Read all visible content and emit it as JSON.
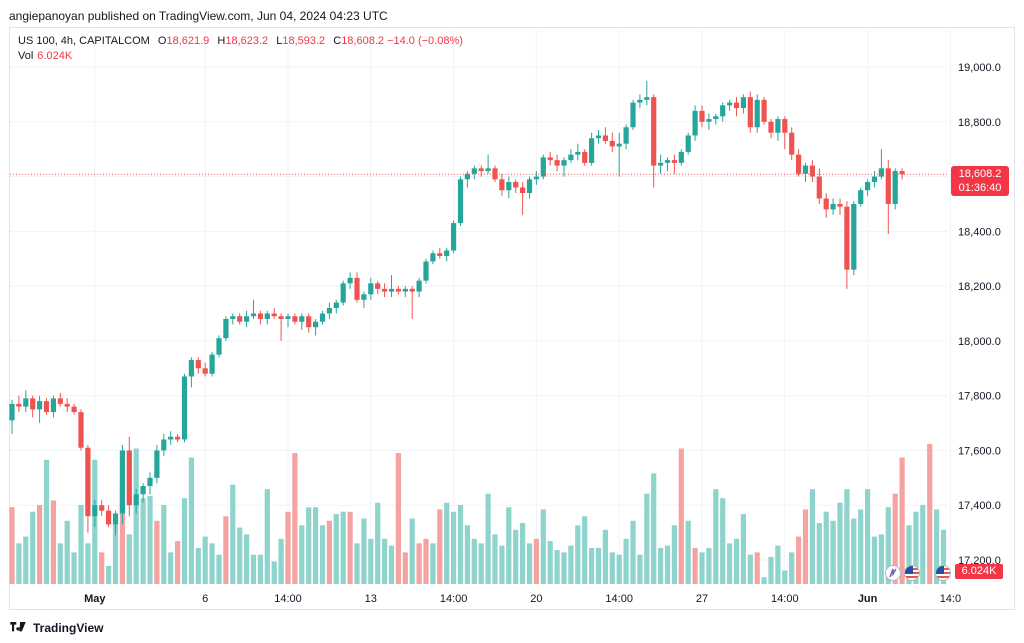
{
  "header": {
    "publisher": "angiepanoyan published on TradingView.com, Jun 04, 2024 04:23 UTC"
  },
  "legend": {
    "symbol": "US 100, 4h, CAPITALCOM",
    "o_label": "O",
    "o": "18,621.9",
    "h_label": "H",
    "h": "18,623.2",
    "l_label": "L",
    "l": "18,593.2",
    "c_label": "C",
    "c": "18,608.2",
    "change": "−14.0 (−0.08%)",
    "vol_label": "Vol",
    "vol_value": "6.024K"
  },
  "price_tag": {
    "price": "18,608.2",
    "countdown": "01:36:40"
  },
  "volume_tag": "6.024K",
  "footer": {
    "brand": "TradingView"
  },
  "colors": {
    "up": "#26a69a",
    "down": "#ef5350",
    "vol_up": "#8fd3cd",
    "vol_down": "#f5a3a1",
    "grid": "#f0f3fa"
  },
  "chart_data": {
    "type": "candlestick",
    "timeframe": "4h",
    "y_axis": {
      "ticks": [
        17200,
        17400,
        17600,
        17800,
        18000,
        18200,
        18400,
        18600,
        18800,
        19000
      ],
      "tick_labels": [
        "17,200.0",
        "17,400.0",
        "17,600.0",
        "17,800.0",
        "18,000.0",
        "18,200.0",
        "18,400.0",
        "18,600.0",
        "18,800.0",
        "19,000.0"
      ],
      "range": [
        17100,
        19150
      ]
    },
    "x_axis": {
      "tick_labels": [
        {
          "label": "May",
          "index": 12,
          "bold": true
        },
        {
          "label": "6",
          "index": 28
        },
        {
          "label": "14:00",
          "index": 40
        },
        {
          "label": "13",
          "index": 52
        },
        {
          "label": "14:00",
          "index": 64
        },
        {
          "label": "20",
          "index": 76
        },
        {
          "label": "14:00",
          "index": 88
        },
        {
          "label": "27",
          "index": 100
        },
        {
          "label": "14:00",
          "index": 112
        },
        {
          "label": "Jun",
          "index": 124,
          "bold": true
        },
        {
          "label": "14:0",
          "index": 136
        }
      ]
    },
    "last_price_line": 18608.2,
    "candles": [
      [
        17710,
        17785,
        17660,
        17770
      ],
      [
        17770,
        17800,
        17740,
        17760
      ],
      [
        17760,
        17820,
        17740,
        17790
      ],
      [
        17790,
        17800,
        17720,
        17750
      ],
      [
        17750,
        17800,
        17700,
        17780
      ],
      [
        17780,
        17790,
        17730,
        17740
      ],
      [
        17740,
        17800,
        17720,
        17790
      ],
      [
        17790,
        17810,
        17760,
        17770
      ],
      [
        17770,
        17790,
        17740,
        17760
      ],
      [
        17760,
        17770,
        17730,
        17740
      ],
      [
        17740,
        17750,
        17600,
        17610
      ],
      [
        17610,
        17620,
        17300,
        17360
      ],
      [
        17360,
        17420,
        17320,
        17400
      ],
      [
        17400,
        17420,
        17360,
        17380
      ],
      [
        17380,
        17400,
        17320,
        17330
      ],
      [
        17330,
        17380,
        17290,
        17370
      ],
      [
        17370,
        17620,
        17330,
        17600
      ],
      [
        17600,
        17650,
        17360,
        17400
      ],
      [
        17400,
        17460,
        17370,
        17440
      ],
      [
        17440,
        17480,
        17410,
        17470
      ],
      [
        17470,
        17520,
        17440,
        17500
      ],
      [
        17500,
        17620,
        17480,
        17600
      ],
      [
        17600,
        17660,
        17580,
        17640
      ],
      [
        17640,
        17670,
        17620,
        17650
      ],
      [
        17650,
        17660,
        17630,
        17640
      ],
      [
        17640,
        17880,
        17630,
        17870
      ],
      [
        17870,
        17940,
        17830,
        17930
      ],
      [
        17930,
        17940,
        17880,
        17900
      ],
      [
        17900,
        17920,
        17870,
        17880
      ],
      [
        17880,
        17960,
        17870,
        17950
      ],
      [
        17950,
        18020,
        17940,
        18010
      ],
      [
        18010,
        18090,
        18000,
        18080
      ],
      [
        18080,
        18100,
        18060,
        18090
      ],
      [
        18090,
        18100,
        18060,
        18070
      ],
      [
        18070,
        18110,
        18050,
        18090
      ],
      [
        18090,
        18150,
        18080,
        18100
      ],
      [
        18100,
        18110,
        18060,
        18080
      ],
      [
        18080,
        18110,
        18060,
        18100
      ],
      [
        18100,
        18120,
        18080,
        18090
      ],
      [
        18090,
        18100,
        18000,
        18080
      ],
      [
        18080,
        18100,
        18050,
        18090
      ],
      [
        18090,
        18100,
        18060,
        18070
      ],
      [
        18070,
        18100,
        18040,
        18090
      ],
      [
        18090,
        18100,
        18030,
        18050
      ],
      [
        18050,
        18080,
        18020,
        18070
      ],
      [
        18070,
        18110,
        18060,
        18100
      ],
      [
        18100,
        18140,
        18080,
        18120
      ],
      [
        18120,
        18150,
        18100,
        18140
      ],
      [
        18140,
        18220,
        18130,
        18210
      ],
      [
        18210,
        18250,
        18190,
        18230
      ],
      [
        18230,
        18250,
        18140,
        18150
      ],
      [
        18150,
        18180,
        18120,
        18170
      ],
      [
        18170,
        18230,
        18150,
        18210
      ],
      [
        18210,
        18220,
        18170,
        18190
      ],
      [
        18190,
        18210,
        18160,
        18180
      ],
      [
        18180,
        18240,
        18160,
        18190
      ],
      [
        18190,
        18200,
        18170,
        18180
      ],
      [
        18180,
        18200,
        18160,
        18190
      ],
      [
        18190,
        18200,
        18080,
        18180
      ],
      [
        18180,
        18230,
        18160,
        18220
      ],
      [
        18220,
        18300,
        18210,
        18290
      ],
      [
        18290,
        18330,
        18280,
        18320
      ],
      [
        18320,
        18340,
        18300,
        18310
      ],
      [
        18310,
        18340,
        18290,
        18330
      ],
      [
        18330,
        18440,
        18320,
        18430
      ],
      [
        18430,
        18600,
        18420,
        18590
      ],
      [
        18590,
        18620,
        18560,
        18610
      ],
      [
        18610,
        18640,
        18590,
        18630
      ],
      [
        18630,
        18640,
        18600,
        18620
      ],
      [
        18620,
        18680,
        18610,
        18630
      ],
      [
        18630,
        18640,
        18580,
        18590
      ],
      [
        18590,
        18610,
        18530,
        18550
      ],
      [
        18550,
        18600,
        18520,
        18580
      ],
      [
        18580,
        18590,
        18540,
        18560
      ],
      [
        18560,
        18580,
        18460,
        18540
      ],
      [
        18540,
        18600,
        18520,
        18590
      ],
      [
        18590,
        18620,
        18570,
        18600
      ],
      [
        18600,
        18680,
        18590,
        18670
      ],
      [
        18670,
        18690,
        18640,
        18660
      ],
      [
        18660,
        18680,
        18620,
        18640
      ],
      [
        18640,
        18670,
        18600,
        18660
      ],
      [
        18660,
        18700,
        18650,
        18680
      ],
      [
        18680,
        18720,
        18660,
        18690
      ],
      [
        18690,
        18700,
        18640,
        18650
      ],
      [
        18650,
        18760,
        18640,
        18740
      ],
      [
        18740,
        18770,
        18720,
        18750
      ],
      [
        18750,
        18780,
        18720,
        18730
      ],
      [
        18730,
        18760,
        18690,
        18710
      ],
      [
        18710,
        18760,
        18600,
        18720
      ],
      [
        18720,
        18790,
        18700,
        18780
      ],
      [
        18780,
        18880,
        18770,
        18870
      ],
      [
        18870,
        18900,
        18850,
        18880
      ],
      [
        18880,
        18950,
        18860,
        18890
      ],
      [
        18890,
        18900,
        18560,
        18640
      ],
      [
        18640,
        18680,
        18610,
        18650
      ],
      [
        18650,
        18670,
        18620,
        18660
      ],
      [
        18660,
        18680,
        18610,
        18650
      ],
      [
        18650,
        18700,
        18640,
        18690
      ],
      [
        18690,
        18760,
        18680,
        18750
      ],
      [
        18750,
        18860,
        18730,
        18840
      ],
      [
        18840,
        18860,
        18780,
        18800
      ],
      [
        18800,
        18830,
        18770,
        18810
      ],
      [
        18810,
        18830,
        18790,
        18820
      ],
      [
        18820,
        18870,
        18800,
        18860
      ],
      [
        18860,
        18880,
        18840,
        18870
      ],
      [
        18870,
        18890,
        18820,
        18850
      ],
      [
        18850,
        18900,
        18830,
        18890
      ],
      [
        18890,
        18910,
        18760,
        18780
      ],
      [
        18780,
        18900,
        18760,
        18880
      ],
      [
        18880,
        18890,
        18790,
        18800
      ],
      [
        18800,
        18810,
        18740,
        18760
      ],
      [
        18760,
        18820,
        18730,
        18810
      ],
      [
        18810,
        18820,
        18700,
        18760
      ],
      [
        18760,
        18780,
        18660,
        18680
      ],
      [
        18680,
        18700,
        18600,
        18610
      ],
      [
        18610,
        18650,
        18580,
        18640
      ],
      [
        18640,
        18660,
        18580,
        18600
      ],
      [
        18600,
        18630,
        18500,
        18520
      ],
      [
        18520,
        18540,
        18450,
        18480
      ],
      [
        18480,
        18520,
        18460,
        18500
      ],
      [
        18500,
        18520,
        18460,
        18490
      ],
      [
        18490,
        18510,
        18190,
        18260
      ],
      [
        18260,
        18510,
        18240,
        18500
      ],
      [
        18500,
        18560,
        18490,
        18550
      ],
      [
        18550,
        18590,
        18530,
        18580
      ],
      [
        18580,
        18620,
        18560,
        18600
      ],
      [
        18600,
        18700,
        18590,
        18630
      ],
      [
        18630,
        18660,
        18390,
        18500
      ],
      [
        18500,
        18630,
        18480,
        18620
      ],
      [
        18620,
        18630,
        18590,
        18608
      ]
    ],
    "volumes": [
      [
        340,
        0
      ],
      [
        180,
        1
      ],
      [
        210,
        1
      ],
      [
        320,
        1
      ],
      [
        350,
        0
      ],
      [
        550,
        1
      ],
      [
        370,
        0
      ],
      [
        180,
        1
      ],
      [
        280,
        1
      ],
      [
        140,
        1
      ],
      [
        350,
        1
      ],
      [
        180,
        1
      ],
      [
        550,
        1
      ],
      [
        140,
        0
      ],
      [
        80,
        1
      ],
      [
        270,
        1
      ],
      [
        450,
        0
      ],
      [
        220,
        1
      ],
      [
        600,
        1
      ],
      [
        380,
        1
      ],
      [
        390,
        1
      ],
      [
        280,
        0
      ],
      [
        350,
        1
      ],
      [
        140,
        1
      ],
      [
        190,
        0
      ],
      [
        380,
        1
      ],
      [
        560,
        1
      ],
      [
        160,
        1
      ],
      [
        210,
        1
      ],
      [
        180,
        1
      ],
      [
        130,
        1
      ],
      [
        300,
        0
      ],
      [
        440,
        1
      ],
      [
        250,
        1
      ],
      [
        220,
        1
      ],
      [
        130,
        1
      ],
      [
        130,
        1
      ],
      [
        420,
        1
      ],
      [
        100,
        1
      ],
      [
        200,
        1
      ],
      [
        320,
        0
      ],
      [
        580,
        0
      ],
      [
        260,
        1
      ],
      [
        340,
        1
      ],
      [
        340,
        1
      ],
      [
        260,
        1
      ],
      [
        280,
        0
      ],
      [
        310,
        1
      ],
      [
        320,
        1
      ],
      [
        320,
        0
      ],
      [
        180,
        1
      ],
      [
        290,
        1
      ],
      [
        200,
        1
      ],
      [
        360,
        1
      ],
      [
        200,
        1
      ],
      [
        170,
        1
      ],
      [
        580,
        0
      ],
      [
        140,
        0
      ],
      [
        290,
        1
      ],
      [
        180,
        0
      ],
      [
        200,
        0
      ],
      [
        180,
        1
      ],
      [
        330,
        0
      ],
      [
        360,
        1
      ],
      [
        320,
        1
      ],
      [
        350,
        1
      ],
      [
        260,
        1
      ],
      [
        200,
        1
      ],
      [
        180,
        1
      ],
      [
        400,
        1
      ],
      [
        220,
        1
      ],
      [
        170,
        1
      ],
      [
        340,
        1
      ],
      [
        240,
        1
      ],
      [
        270,
        1
      ],
      [
        180,
        1
      ],
      [
        200,
        0
      ],
      [
        330,
        1
      ],
      [
        190,
        1
      ],
      [
        150,
        1
      ],
      [
        140,
        1
      ],
      [
        170,
        1
      ],
      [
        260,
        1
      ],
      [
        300,
        1
      ],
      [
        160,
        1
      ],
      [
        160,
        1
      ],
      [
        240,
        1
      ],
      [
        140,
        1
      ],
      [
        130,
        1
      ],
      [
        200,
        1
      ],
      [
        280,
        1
      ],
      [
        130,
        1
      ],
      [
        400,
        1
      ],
      [
        490,
        1
      ],
      [
        160,
        1
      ],
      [
        170,
        1
      ],
      [
        260,
        1
      ],
      [
        600,
        0
      ],
      [
        280,
        1
      ],
      [
        160,
        0
      ],
      [
        140,
        1
      ],
      [
        160,
        1
      ],
      [
        420,
        1
      ],
      [
        380,
        1
      ],
      [
        180,
        1
      ],
      [
        200,
        1
      ],
      [
        310,
        1
      ],
      [
        130,
        1
      ],
      [
        140,
        0
      ],
      [
        30,
        1
      ],
      [
        120,
        1
      ],
      [
        170,
        1
      ],
      [
        60,
        1
      ],
      [
        140,
        1
      ],
      [
        210,
        0
      ],
      [
        330,
        0
      ],
      [
        420,
        1
      ],
      [
        270,
        1
      ],
      [
        320,
        1
      ],
      [
        280,
        1
      ],
      [
        360,
        1
      ],
      [
        420,
        1
      ],
      [
        290,
        1
      ],
      [
        330,
        1
      ],
      [
        420,
        1
      ],
      [
        210,
        1
      ],
      [
        220,
        1
      ],
      [
        340,
        1
      ],
      [
        400,
        0
      ],
      [
        560,
        0
      ],
      [
        260,
        1
      ],
      [
        320,
        1
      ],
      [
        350,
        1
      ],
      [
        620,
        0
      ],
      [
        330,
        1
      ],
      [
        240,
        1
      ]
    ]
  }
}
